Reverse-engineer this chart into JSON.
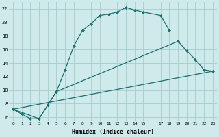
{
  "xlabel": "Humidex (Indice chaleur)",
  "bg_color": "#ceeaea",
  "grid_color": "#a8cccc",
  "line_color": "#1a6e6e",
  "xlim": [
    -0.5,
    23.5
  ],
  "ylim": [
    5.5,
    23.0
  ],
  "yticks": [
    6,
    8,
    10,
    12,
    14,
    16,
    18,
    20,
    22
  ],
  "xticks": [
    0,
    1,
    2,
    3,
    4,
    5,
    6,
    7,
    8,
    9,
    10,
    11,
    12,
    13,
    14,
    15,
    17,
    18,
    19,
    20,
    21,
    22,
    23
  ],
  "line1_x": [
    0,
    1,
    2,
    3,
    4,
    5,
    6,
    7,
    8,
    9,
    10,
    11,
    12,
    13,
    14,
    15,
    17,
    18
  ],
  "line1_y": [
    7.2,
    6.5,
    5.8,
    5.8,
    7.8,
    9.8,
    13.0,
    16.5,
    18.8,
    19.8,
    21.0,
    21.2,
    21.5,
    22.2,
    21.8,
    21.5,
    21.0,
    18.8
  ],
  "line2_x": [
    0,
    3,
    4,
    5,
    19,
    20,
    21,
    22,
    23
  ],
  "line2_y": [
    7.2,
    5.8,
    7.8,
    9.8,
    17.2,
    15.8,
    14.5,
    13.0,
    12.8
  ],
  "line3_x": [
    0,
    23
  ],
  "line3_y": [
    7.2,
    12.8
  ],
  "markersize": 2.0,
  "linewidth": 0.9
}
